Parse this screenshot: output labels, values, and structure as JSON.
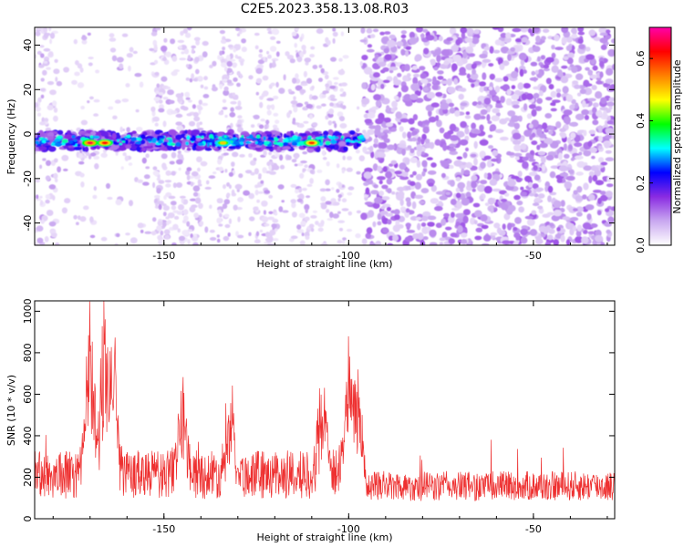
{
  "title": "C2E5.2023.358.13.08.R03",
  "chart_data": [
    {
      "type": "heatmap",
      "xlabel": "Height of straight line (km)",
      "ylabel": "Frequency (Hz)",
      "xlim": [
        -185,
        -28
      ],
      "ylim": [
        -50,
        48
      ],
      "xticks": [
        -150,
        -100,
        -50
      ],
      "yticks": [
        -40,
        -20,
        0,
        20,
        40
      ],
      "xtick_labels": [
        "-150",
        "-100",
        "-50"
      ],
      "ytick_labels": [
        "-40",
        "-20",
        "0",
        "20",
        "40"
      ],
      "colorbar": {
        "label": "Normalized spectral amplitude",
        "range": [
          0.0,
          0.7
        ],
        "ticks": [
          0.0,
          0.2,
          0.4,
          0.6
        ],
        "tick_labels": [
          "0.0",
          "0.2",
          "0.4",
          "0.6"
        ],
        "colormap": [
          "#ffffff",
          "#c9a8f0",
          "#8a2be2",
          "#0000ff",
          "#00ffff",
          "#00ff00",
          "#ffff00",
          "#ff8000",
          "#ff0000",
          "#ff00aa"
        ]
      },
      "signal_band": {
        "frequency": -3,
        "x_range": [
          -185,
          -96
        ]
      },
      "hot_spots": [
        {
          "x": -170,
          "y": -4,
          "value": 0.65
        },
        {
          "x": -166,
          "y": -4,
          "value": 0.62
        },
        {
          "x": -110,
          "y": -4,
          "value": 0.6
        },
        {
          "x": -134,
          "y": -4,
          "value": 0.5
        }
      ],
      "noise_transition_x": -96
    },
    {
      "type": "line",
      "xlabel": "Height of straight line (km)",
      "ylabel": "SNR (10 * v/v)",
      "xlim": [
        -185,
        -28
      ],
      "ylim": [
        0,
        1050
      ],
      "xticks": [
        -150,
        -100,
        -50
      ],
      "yticks": [
        0,
        200,
        400,
        600,
        800,
        1000
      ],
      "xtick_labels": [
        "-150",
        "-100",
        "-50"
      ],
      "ytick_labels": [
        "0",
        "200",
        "400",
        "600",
        "800",
        "1000"
      ],
      "series": [
        {
          "color": "#ee3030"
        }
      ],
      "peaks": [
        {
          "x": -170,
          "y": 980
        },
        {
          "x": -166,
          "y": 1040
        },
        {
          "x": -164,
          "y": 1000
        },
        {
          "x": -145,
          "y": 630
        },
        {
          "x": -132,
          "y": 590
        },
        {
          "x": -107,
          "y": 720
        },
        {
          "x": -100,
          "y": 860
        },
        {
          "x": -98,
          "y": 830
        }
      ],
      "baseline_left": 200,
      "baseline_right": 150
    }
  ]
}
